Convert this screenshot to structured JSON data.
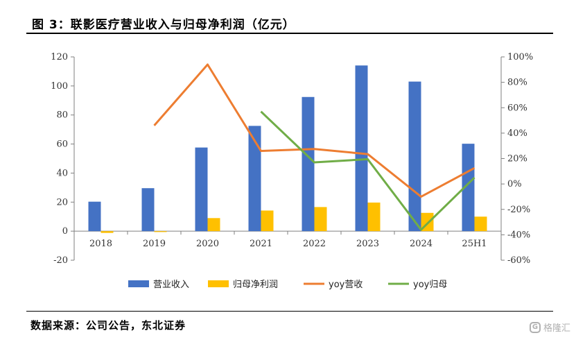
{
  "title": "图 3：联影医疗营业收入与归母净利润（亿元）",
  "source": "数据来源：公司公告，东北证券",
  "watermark": {
    "logo": "G",
    "text": "格隆汇"
  },
  "colors": {
    "revenue": "#4472C4",
    "profit": "#FFC000",
    "yoy_revenue": "#ED7D31",
    "yoy_profit": "#70AD47",
    "axis": "#7f7f7f"
  },
  "chart_data": {
    "type": "bar",
    "categories": [
      "2018",
      "2019",
      "2020",
      "2021",
      "2022",
      "2023",
      "2024",
      "25H1"
    ],
    "left_axis": {
      "ylim": [
        -20,
        120
      ],
      "ticks": [
        "-20",
        "0",
        "20",
        "40",
        "60",
        "80",
        "100",
        "120"
      ]
    },
    "right_axis": {
      "ylim": [
        -60,
        100
      ],
      "ticks": [
        "-60%",
        "-40%",
        "-20%",
        "0%",
        "20%",
        "40%",
        "60%",
        "80%",
        "100%"
      ]
    },
    "series": [
      {
        "name": "营业收入",
        "kind": "bar",
        "axis": "left",
        "values": [
          20.3,
          29.6,
          57.6,
          72.5,
          92.4,
          114.1,
          103.0,
          60.2
        ]
      },
      {
        "name": "归母净利润",
        "kind": "bar",
        "axis": "left",
        "values": [
          -1.2,
          -0.6,
          9.0,
          14.2,
          16.6,
          19.7,
          12.6,
          10.0
        ]
      },
      {
        "name": "yoy营收",
        "kind": "line",
        "axis": "right",
        "values": [
          null,
          46,
          94,
          26,
          27.5,
          23.5,
          -10,
          12.5
        ]
      },
      {
        "name": "yoy归母",
        "kind": "line",
        "axis": "right",
        "values": [
          null,
          null,
          null,
          57,
          17,
          19.5,
          -36,
          5
        ]
      }
    ],
    "legend": {
      "position": "bottom"
    },
    "grid": false
  }
}
